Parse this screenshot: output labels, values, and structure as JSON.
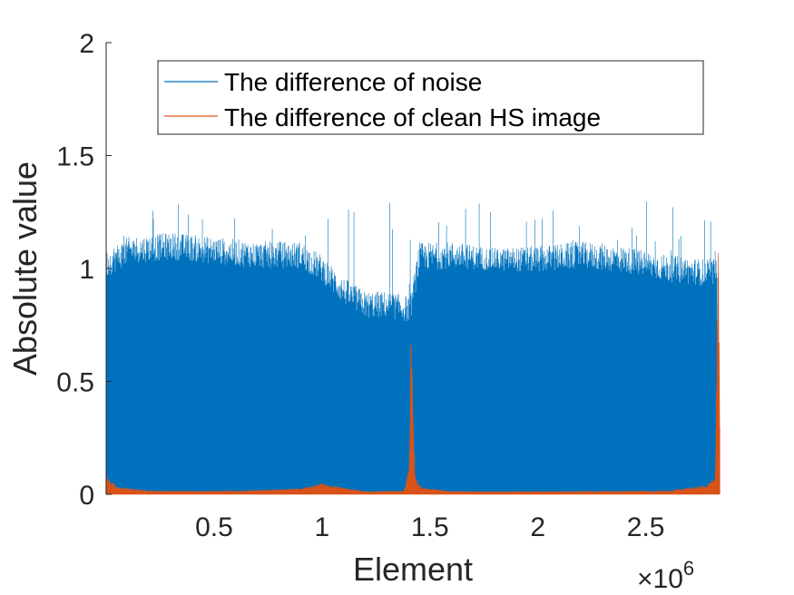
{
  "chart_data": {
    "type": "line",
    "title": "",
    "xlabel": "Element",
    "ylabel": "Absolute value",
    "x_exponent_label": "×10",
    "x_exponent_power": "6",
    "xlim": [
      0,
      2842000
    ],
    "ylim": [
      0,
      2
    ],
    "x_scale": 1000000,
    "xticks": [
      500000,
      1000000,
      1500000,
      2000000,
      2500000
    ],
    "xtick_labels": [
      "0.5",
      "1",
      "1.5",
      "2",
      "2.5"
    ],
    "yticks": [
      0,
      0.5,
      1,
      1.5,
      2
    ],
    "ytick_labels": [
      "0",
      "0.5",
      "1",
      "1.5",
      "2"
    ],
    "grid": false,
    "legend_position": "top-right",
    "series": [
      {
        "name": "The difference of noise",
        "color": "#0072BD",
        "style": "dense-noise",
        "envelope": {
          "x": [
            0,
            100000,
            300000,
            500000,
            700000,
            900000,
            1000000,
            1100000,
            1200000,
            1300000,
            1400000,
            1410000,
            1450000,
            1600000,
            1800000,
            2000000,
            2200000,
            2400000,
            2600000,
            2800000,
            2830000
          ],
          "upper": [
            1.02,
            1.08,
            1.1,
            1.08,
            1.06,
            1.06,
            1.0,
            0.9,
            0.84,
            0.84,
            0.82,
            0.82,
            1.05,
            1.06,
            1.04,
            1.04,
            1.06,
            1.04,
            1.0,
            0.98,
            0.98
          ],
          "fill": [
            0.9,
            0.96,
            0.98,
            0.96,
            0.94,
            0.94,
            0.88,
            0.78,
            0.72,
            0.72,
            0.7,
            0.7,
            0.92,
            0.94,
            0.94,
            0.92,
            0.94,
            0.92,
            0.88,
            0.86,
            0.86
          ]
        },
        "peak_max": 1.31
      },
      {
        "name": "The difference of clean HS image",
        "color": "#D95319",
        "points": [
          [
            0,
            0.07
          ],
          [
            20000,
            0.045
          ],
          [
            60000,
            0.025
          ],
          [
            200000,
            0.012
          ],
          [
            600000,
            0.012
          ],
          [
            900000,
            0.02
          ],
          [
            1000000,
            0.038
          ],
          [
            1060000,
            0.028
          ],
          [
            1200000,
            0.01
          ],
          [
            1380000,
            0.012
          ],
          [
            1405000,
            0.1
          ],
          [
            1412000,
            0.66
          ],
          [
            1418000,
            0.38
          ],
          [
            1430000,
            0.06
          ],
          [
            1460000,
            0.025
          ],
          [
            1600000,
            0.01
          ],
          [
            2000000,
            0.01
          ],
          [
            2600000,
            0.012
          ],
          [
            2780000,
            0.03
          ],
          [
            2822000,
            0.06
          ],
          [
            2830000,
            0.48
          ],
          [
            2836000,
            0.96
          ],
          [
            2842000,
            0.3
          ]
        ]
      }
    ]
  }
}
